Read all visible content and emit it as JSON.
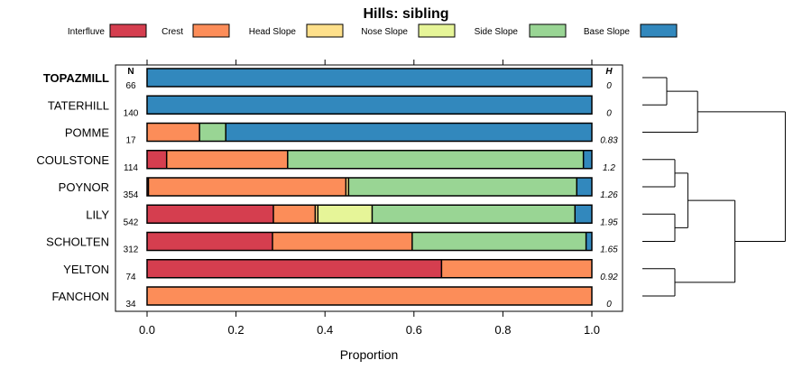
{
  "chart_data": {
    "type": "stacked-bar",
    "title": "Hills: sibling",
    "xlabel": "Proportion",
    "xlim": [
      0,
      1
    ],
    "xticks": [
      "0.0",
      "0.2",
      "0.4",
      "0.6",
      "0.8",
      "1.0"
    ],
    "n_header": "N",
    "h_header": "H",
    "legend": [
      {
        "name": "Interfluve",
        "color": "#D53E4F"
      },
      {
        "name": "Crest",
        "color": "#FC8D59"
      },
      {
        "name": "Head Slope",
        "color": "#FEE08B"
      },
      {
        "name": "Nose Slope",
        "color": "#E6F598"
      },
      {
        "name": "Side Slope",
        "color": "#99D594"
      },
      {
        "name": "Base Slope",
        "color": "#3288BD"
      }
    ],
    "rows": [
      {
        "label": "TOPAZMILL",
        "bold": true,
        "n": "66",
        "h": "0",
        "values": [
          0,
          0,
          0,
          0,
          0,
          1.0
        ]
      },
      {
        "label": "TATERHILL",
        "bold": false,
        "n": "140",
        "h": "0",
        "values": [
          0,
          0,
          0,
          0,
          0,
          1.0
        ]
      },
      {
        "label": "POMME",
        "bold": false,
        "n": "17",
        "h": "0.83",
        "values": [
          0,
          0.118,
          0,
          0,
          0.059,
          0.823
        ]
      },
      {
        "label": "COULSTONE",
        "bold": false,
        "n": "114",
        "h": "1.2",
        "values": [
          0.044,
          0.272,
          0,
          0,
          0.665,
          0.019
        ]
      },
      {
        "label": "POYNOR",
        "bold": false,
        "n": "354",
        "h": "1.26",
        "values": [
          0.003,
          0.444,
          0.006,
          0,
          0.513,
          0.034
        ]
      },
      {
        "label": "LILY",
        "bold": false,
        "n": "542",
        "h": "1.95",
        "values": [
          0.284,
          0.094,
          0.006,
          0.122,
          0.456,
          0.038
        ]
      },
      {
        "label": "SCHOLTEN",
        "bold": false,
        "n": "312",
        "h": "1.65",
        "values": [
          0.282,
          0.314,
          0,
          0,
          0.391,
          0.013
        ]
      },
      {
        "label": "YELTON",
        "bold": false,
        "n": "74",
        "h": "0.92",
        "values": [
          0.662,
          0.338,
          0,
          0,
          0,
          0
        ]
      },
      {
        "label": "FANCHON",
        "bold": false,
        "n": "34",
        "h": "0",
        "values": [
          0,
          1.0,
          0,
          0,
          0,
          0
        ]
      }
    ],
    "dendrogram": {
      "merges": [
        [
          0,
          1,
          0.85
        ],
        [
          3,
          4,
          0.8
        ],
        [
          5,
          6,
          0.8
        ],
        [
          "m1",
          "m2",
          0.72
        ],
        [
          2,
          "m0",
          0.66
        ],
        [
          7,
          8,
          0.8
        ],
        [
          "m3",
          "m5",
          0.43
        ],
        [
          "m4",
          "m6",
          0.12
        ]
      ]
    }
  }
}
